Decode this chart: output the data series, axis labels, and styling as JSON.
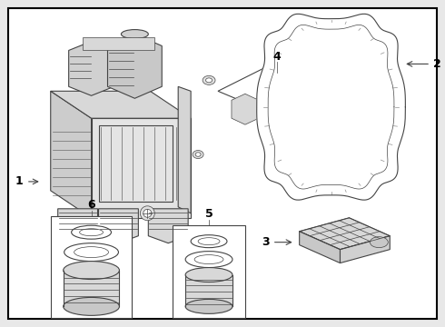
{
  "background_color": "#e8e8e8",
  "border_color": "#000000",
  "line_color": "#444444",
  "fig_width": 4.9,
  "fig_height": 3.6,
  "dpi": 100
}
